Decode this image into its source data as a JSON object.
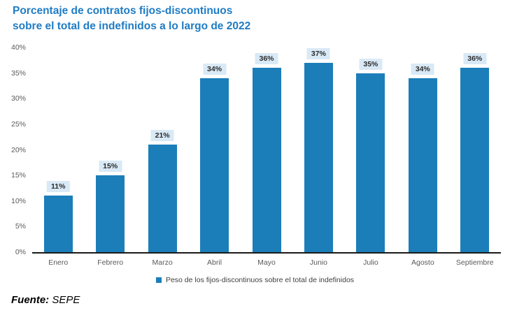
{
  "title": {
    "line1": "Porcentaje de contratos fijos-discontinuos",
    "line2": "sobre el total de indefinidos a lo largo de 2022"
  },
  "legend": {
    "label": "Peso de los fijos-discontinuos sobre el total de indefinidos"
  },
  "source": {
    "prefix": "Fuente:",
    "name": " SEPE"
  },
  "colors": {
    "bar": "#1B7EB9",
    "title": "#1F7CC4",
    "data_label_bg": "#D9E9F6",
    "data_label_text": "#2b2b2b",
    "axis_text": "#595959",
    "axis_line": "#1a1a1a",
    "legend_text": "#404040"
  },
  "chart_data": {
    "type": "bar",
    "title": "Porcentaje de contratos fijos-discontinuos sobre el total de indefinidos a lo largo de 2022",
    "categories": [
      "Enero",
      "Febrero",
      "Marzo",
      "Abril",
      "Mayo",
      "Junio",
      "Julio",
      "Agosto",
      "Septiembre"
    ],
    "values": [
      11,
      15,
      21,
      34,
      36,
      37,
      35,
      34,
      36
    ],
    "data_labels": [
      "11%",
      "15%",
      "21%",
      "34%",
      "36%",
      "37%",
      "35%",
      "34%",
      "36%"
    ],
    "y_ticks": [
      0,
      5,
      10,
      15,
      20,
      25,
      30,
      35,
      40
    ],
    "y_tick_labels": [
      "0%",
      "5%",
      "10%",
      "15%",
      "20%",
      "25%",
      "30%",
      "35%",
      "40%"
    ],
    "xlabel": "",
    "ylabel": "",
    "ylim": [
      0,
      40
    ],
    "grid": false,
    "legend_position": "bottom",
    "legend_entries": [
      "Peso de los fijos-discontinuos sobre el total de indefinidos"
    ],
    "source": "Fuente: SEPE"
  }
}
